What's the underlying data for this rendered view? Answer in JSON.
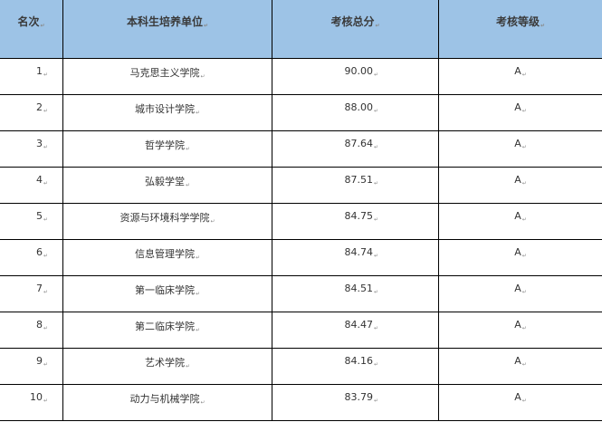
{
  "headers": {
    "rank": "名次",
    "unit": "本科生培养单位",
    "score": "考核总分",
    "grade": "考核等级"
  },
  "colors": {
    "header_bg": "#9dc3e6"
  },
  "rows": [
    {
      "rank": "1",
      "unit": "马克思主义学院",
      "score": "90.00",
      "grade": "A"
    },
    {
      "rank": "2",
      "unit": "城市设计学院",
      "score": "88.00",
      "grade": "A"
    },
    {
      "rank": "3",
      "unit": "哲学学院",
      "score": "87.64",
      "grade": "A"
    },
    {
      "rank": "4",
      "unit": "弘毅学堂",
      "score": "87.51",
      "grade": "A"
    },
    {
      "rank": "5",
      "unit": "资源与环境科学学院",
      "score": "84.75",
      "grade": "A"
    },
    {
      "rank": "6",
      "unit": "信息管理学院",
      "score": "84.74",
      "grade": "A"
    },
    {
      "rank": "7",
      "unit": "第一临床学院",
      "score": "84.51",
      "grade": "A"
    },
    {
      "rank": "8",
      "unit": "第二临床学院",
      "score": "84.47",
      "grade": "A"
    },
    {
      "rank": "9",
      "unit": "艺术学院",
      "score": "84.16",
      "grade": "A"
    },
    {
      "rank": "10",
      "unit": "动力与机械学院",
      "score": "83.79",
      "grade": "A"
    }
  ]
}
